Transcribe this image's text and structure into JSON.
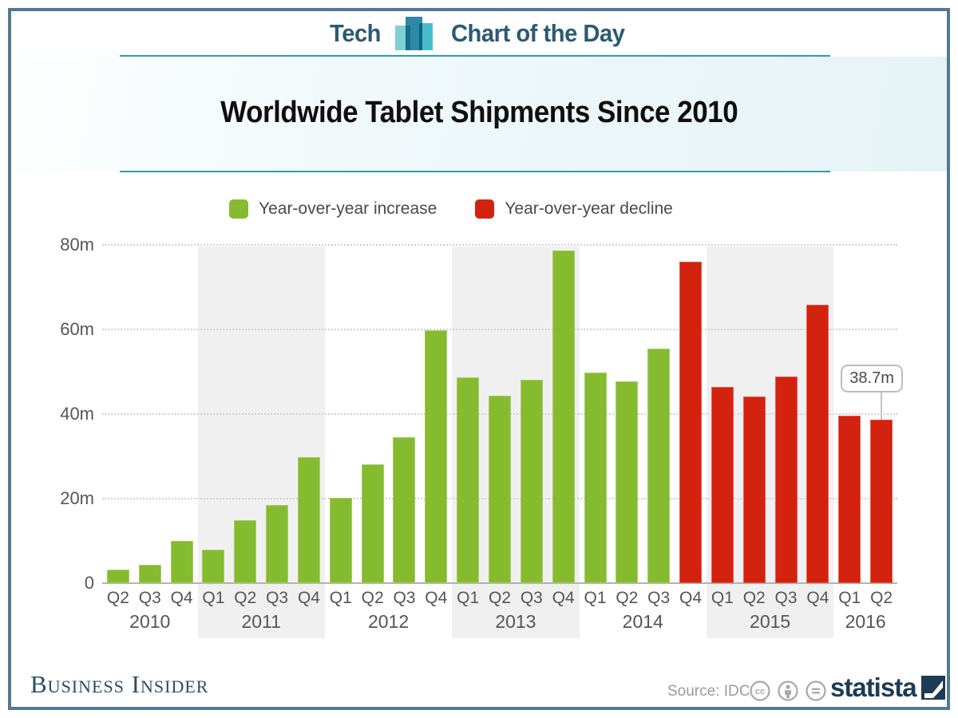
{
  "header": {
    "brand_left": "Tech",
    "brand_right": "Chart of the Day",
    "accent_color": "#2b9cb3",
    "text_color": "#2b5a73"
  },
  "title": "Worldwide Tablet Shipments Since 2010",
  "legend": [
    {
      "label": "Year-over-year increase",
      "color": "#85bb2f"
    },
    {
      "label": "Year-over-year decline",
      "color": "#d3220e"
    }
  ],
  "chart_data": {
    "type": "bar",
    "title": "Worldwide Tablet Shipments Since 2010",
    "xlabel": "",
    "ylabel": "",
    "ylim": [
      0,
      80
    ],
    "yticks": [
      {
        "value": 0,
        "label": "0"
      },
      {
        "value": 20,
        "label": "20m"
      },
      {
        "value": 40,
        "label": "40m"
      },
      {
        "value": 60,
        "label": "60m"
      },
      {
        "value": 80,
        "label": "80m"
      }
    ],
    "grid": "horizontal dotted",
    "legend_position": "top",
    "shaded_year_bands": [
      2011,
      2013,
      2015
    ],
    "series_colors": {
      "increase": "#85bb2f",
      "decline": "#d3220e"
    },
    "annotation": {
      "label": "38.7m",
      "year": 2016,
      "quarter": "Q2"
    },
    "points": [
      {
        "year": 2010,
        "quarter": "Q2",
        "value": 3.2,
        "trend": "increase"
      },
      {
        "year": 2010,
        "quarter": "Q3",
        "value": 4.4,
        "trend": "increase"
      },
      {
        "year": 2010,
        "quarter": "Q4",
        "value": 10.0,
        "trend": "increase"
      },
      {
        "year": 2011,
        "quarter": "Q1",
        "value": 7.9,
        "trend": "increase"
      },
      {
        "year": 2011,
        "quarter": "Q2",
        "value": 14.9,
        "trend": "increase"
      },
      {
        "year": 2011,
        "quarter": "Q3",
        "value": 18.5,
        "trend": "increase"
      },
      {
        "year": 2011,
        "quarter": "Q4",
        "value": 29.8,
        "trend": "increase"
      },
      {
        "year": 2012,
        "quarter": "Q1",
        "value": 20.2,
        "trend": "increase"
      },
      {
        "year": 2012,
        "quarter": "Q2",
        "value": 28.2,
        "trend": "increase"
      },
      {
        "year": 2012,
        "quarter": "Q3",
        "value": 34.5,
        "trend": "increase"
      },
      {
        "year": 2012,
        "quarter": "Q4",
        "value": 59.9,
        "trend": "increase"
      },
      {
        "year": 2013,
        "quarter": "Q1",
        "value": 48.6,
        "trend": "increase"
      },
      {
        "year": 2013,
        "quarter": "Q2",
        "value": 44.3,
        "trend": "increase"
      },
      {
        "year": 2013,
        "quarter": "Q3",
        "value": 48.2,
        "trend": "increase"
      },
      {
        "year": 2013,
        "quarter": "Q4",
        "value": 78.6,
        "trend": "increase"
      },
      {
        "year": 2014,
        "quarter": "Q1",
        "value": 49.8,
        "trend": "increase"
      },
      {
        "year": 2014,
        "quarter": "Q2",
        "value": 47.7,
        "trend": "increase"
      },
      {
        "year": 2014,
        "quarter": "Q3",
        "value": 55.5,
        "trend": "increase"
      },
      {
        "year": 2014,
        "quarter": "Q4",
        "value": 76.1,
        "trend": "decline"
      },
      {
        "year": 2015,
        "quarter": "Q1",
        "value": 46.4,
        "trend": "decline"
      },
      {
        "year": 2015,
        "quarter": "Q2",
        "value": 44.2,
        "trend": "decline"
      },
      {
        "year": 2015,
        "quarter": "Q3",
        "value": 48.8,
        "trend": "decline"
      },
      {
        "year": 2015,
        "quarter": "Q4",
        "value": 65.9,
        "trend": "decline"
      },
      {
        "year": 2016,
        "quarter": "Q1",
        "value": 39.6,
        "trend": "decline"
      },
      {
        "year": 2016,
        "quarter": "Q2",
        "value": 38.7,
        "trend": "decline"
      }
    ]
  },
  "footer": {
    "publisher": "Business Insider",
    "source": "Source: IDC",
    "license_icons": [
      "cc-icon",
      "attribution-icon",
      "equal-icon"
    ],
    "brand": "statista",
    "brand_color": "#1d3b55"
  }
}
